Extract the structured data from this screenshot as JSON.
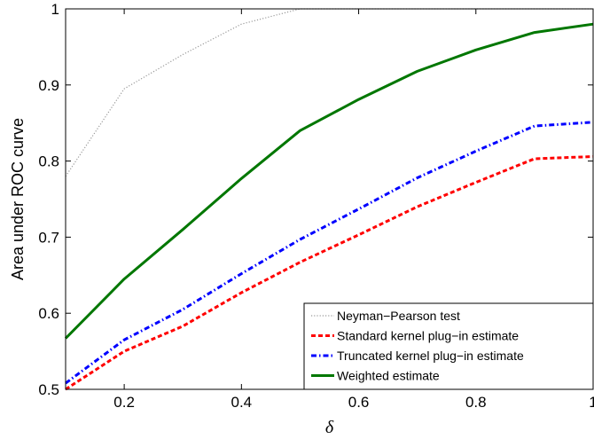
{
  "chart_data": {
    "type": "line",
    "title": "",
    "xlabel": "δ",
    "ylabel": "Area under ROC curve",
    "xlim": [
      0.1,
      1.0
    ],
    "ylim": [
      0.5,
      1.0
    ],
    "x_ticks": [
      0.2,
      0.4,
      0.6,
      0.8,
      1
    ],
    "x_tick_labels": [
      "0.2",
      "0.4",
      "0.6",
      "0.8",
      "1"
    ],
    "y_ticks": [
      0.5,
      0.6,
      0.7,
      0.8,
      0.9,
      1
    ],
    "y_tick_labels": [
      "0.5",
      "0.6",
      "0.7",
      "0.8",
      "0.9",
      "1"
    ],
    "grid": false,
    "legend_position": "bottom-right",
    "series": [
      {
        "name": "Neyman−Pearson test",
        "color": "#999999",
        "style": "dotted",
        "x": [
          0.1,
          0.2,
          0.3,
          0.4,
          0.5,
          0.6,
          0.7,
          0.8,
          0.9,
          1.0
        ],
        "values": [
          0.78,
          0.895,
          0.94,
          0.98,
          1.0,
          1.0,
          1.0,
          1.0,
          1.0,
          1.0
        ]
      },
      {
        "name": "Standard kernel plug−in estimate",
        "color": "#ff0000",
        "style": "dashed",
        "x": [
          0.1,
          0.2,
          0.3,
          0.4,
          0.5,
          0.6,
          0.7,
          0.8,
          0.9,
          1.0
        ],
        "values": [
          0.5,
          0.55,
          0.583,
          0.627,
          0.667,
          0.703,
          0.74,
          0.772,
          0.803,
          0.806
        ]
      },
      {
        "name": "Truncated kernel plug−in estimate",
        "color": "#0000ff",
        "style": "dashdot",
        "x": [
          0.1,
          0.2,
          0.3,
          0.4,
          0.5,
          0.6,
          0.7,
          0.8,
          0.9,
          1.0
        ],
        "values": [
          0.508,
          0.565,
          0.605,
          0.652,
          0.697,
          0.737,
          0.778,
          0.813,
          0.846,
          0.851
        ]
      },
      {
        "name": "Weighted estimate",
        "color": "#007700",
        "style": "solid",
        "x": [
          0.1,
          0.2,
          0.3,
          0.4,
          0.5,
          0.6,
          0.7,
          0.8,
          0.9,
          1.0
        ],
        "values": [
          0.567,
          0.645,
          0.71,
          0.777,
          0.84,
          0.881,
          0.918,
          0.946,
          0.969,
          0.98
        ]
      }
    ]
  }
}
